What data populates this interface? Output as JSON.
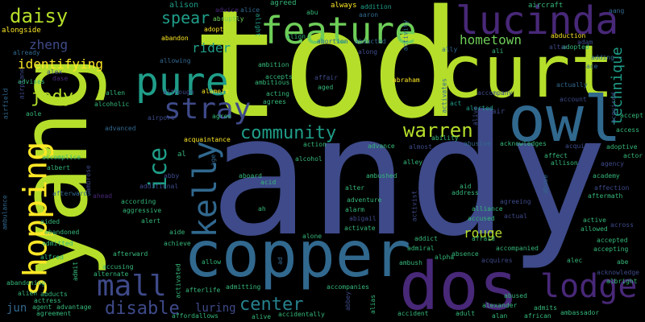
{
  "cloud": {
    "background": "#000000",
    "palette": {
      "yellowgreen": "#b5de2b",
      "green": "#6ece58",
      "teal": "#1f9e89",
      "blue": "#31688e",
      "indigo": "#3e4a89",
      "purple": "#482878",
      "darkpurple": "#440154",
      "cyan": "#26828e",
      "yellow": "#fde725",
      "lightgreen": "#35b779"
    },
    "words": [
      {
        "text": "andy",
        "color": "#3e4a89"
      },
      {
        "text": "tod",
        "color": "#b5de2b"
      },
      {
        "text": "yang",
        "color": "#b5de2b"
      },
      {
        "text": "curt",
        "color": "#b5de2b"
      },
      {
        "text": "owl",
        "color": "#31688e"
      },
      {
        "text": "copper",
        "color": "#31688e"
      },
      {
        "text": "dos",
        "color": "#482878"
      },
      {
        "text": "lucinda",
        "color": "#482878"
      },
      {
        "text": "feature",
        "color": "#6ece58"
      },
      {
        "text": "pure",
        "color": "#1f9e89"
      },
      {
        "text": "stray",
        "color": "#3e4a89"
      },
      {
        "text": "mall",
        "color": "#3e4a89"
      },
      {
        "text": "kelly",
        "color": "#31688e"
      },
      {
        "text": "lodge",
        "color": "#482878"
      },
      {
        "text": "shopping",
        "color": "#fde725"
      },
      {
        "text": "community",
        "color": "#1f9e89"
      },
      {
        "text": "warren",
        "color": "#b5de2b"
      },
      {
        "text": "daisy",
        "color": "#b5de2b"
      },
      {
        "text": "ice",
        "color": "#1f9e89"
      },
      {
        "text": "disable",
        "color": "#3e4a89"
      },
      {
        "text": "center",
        "color": "#26828e"
      },
      {
        "text": "technique",
        "color": "#1f9e89"
      },
      {
        "text": "hometown",
        "color": "#6ece58"
      },
      {
        "text": "spear",
        "color": "#1f9e89"
      },
      {
        "text": "identifying",
        "color": "#fde725"
      },
      {
        "text": "jody",
        "color": "#b5de2b"
      },
      {
        "text": "zheng",
        "color": "#3e4a89"
      },
      {
        "text": "rider",
        "color": "#1f9e89"
      },
      {
        "text": "luring",
        "color": "#3e4a89"
      },
      {
        "text": "rouge",
        "color": "#b5de2b"
      },
      {
        "text": "jun",
        "color": "#31688e"
      },
      {
        "text": "alison",
        "color": "#1f9e89"
      },
      {
        "text": "advice",
        "color": "#482878"
      },
      {
        "text": "alice",
        "color": "#31688e"
      },
      {
        "text": "agreed",
        "color": "#35b779"
      },
      {
        "text": "abu",
        "color": "#35b779"
      },
      {
        "text": "always",
        "color": "#fde725"
      },
      {
        "text": "addition",
        "color": "#1f9e89"
      },
      {
        "text": "aaron",
        "color": "#31688e"
      },
      {
        "text": "aircraft",
        "color": "#35b779"
      },
      {
        "text": "aang",
        "color": "#31688e"
      },
      {
        "text": "abruptly",
        "color": "#6ece58"
      },
      {
        "text": "alongside",
        "color": "#fde725"
      },
      {
        "text": "already",
        "color": "#31688e"
      },
      {
        "text": "alex",
        "color": "#3e4a89"
      },
      {
        "text": "dase",
        "color": "#482878"
      },
      {
        "text": "advises",
        "color": "#35b779"
      },
      {
        "text": "airplane",
        "color": "#3e4a89"
      },
      {
        "text": "airfield",
        "color": "#31688e"
      },
      {
        "text": "aole",
        "color": "#35b779"
      },
      {
        "text": "abandon",
        "color": "#fde725"
      },
      {
        "text": "adopt",
        "color": "#fde725"
      },
      {
        "text": "alight",
        "color": "#1f9e89"
      },
      {
        "text": "align",
        "color": "#35b779"
      },
      {
        "text": "abortion",
        "color": "#31688e"
      },
      {
        "text": "abducted",
        "color": "#31688e"
      },
      {
        "text": "ally",
        "color": "#31688e"
      },
      {
        "text": "ali",
        "color": "#35b779"
      },
      {
        "text": "abduction",
        "color": "#fde725"
      },
      {
        "text": "adopted",
        "color": "#35b779"
      },
      {
        "text": "altar",
        "color": "#3e4a89"
      },
      {
        "text": "adding",
        "color": "#31688e"
      },
      {
        "text": "ace",
        "color": "#31688e"
      },
      {
        "text": "adam",
        "color": "#3e4a89"
      },
      {
        "text": "allowing",
        "color": "#31688e"
      },
      {
        "text": "ambition",
        "color": "#35b779"
      },
      {
        "text": "along",
        "color": "#3e4a89"
      },
      {
        "text": "activity",
        "color": "#31688e"
      },
      {
        "text": "affair",
        "color": "#3e4a89"
      },
      {
        "text": "abraham",
        "color": "#fde725"
      },
      {
        "text": "accepts",
        "color": "#35b779"
      },
      {
        "text": "ambitious",
        "color": "#35b779"
      },
      {
        "text": "aged",
        "color": "#35b779"
      },
      {
        "text": "alamein",
        "color": "#fde725"
      },
      {
        "text": "acting",
        "color": "#35b779"
      },
      {
        "text": "although",
        "color": "#3e4a89"
      },
      {
        "text": "allen",
        "color": "#35b779"
      },
      {
        "text": "alcoholic",
        "color": "#35b779"
      },
      {
        "text": "agrees",
        "color": "#35b779"
      },
      {
        "text": "airport",
        "color": "#3e4a89"
      },
      {
        "text": "agree",
        "color": "#35b779"
      },
      {
        "text": "alerted",
        "color": "#1f9e89"
      },
      {
        "text": "activates",
        "color": "#31688e"
      },
      {
        "text": "accompany",
        "color": "#3e4a89"
      },
      {
        "text": "act",
        "color": "#1f9e89"
      },
      {
        "text": "alive",
        "color": "#3e4a89"
      },
      {
        "text": "air",
        "color": "#3e4a89"
      },
      {
        "text": "actually",
        "color": "#31688e"
      },
      {
        "text": "account",
        "color": "#3e4a89"
      },
      {
        "text": "acquired",
        "color": "#3e4a89"
      },
      {
        "text": "accept",
        "color": "#35b779"
      },
      {
        "text": "acquaintance",
        "color": "#fde725"
      },
      {
        "text": "advanced",
        "color": "#31688e"
      },
      {
        "text": "accomplice",
        "color": "#35b779"
      },
      {
        "text": "action",
        "color": "#35b779"
      },
      {
        "text": "ability",
        "color": "#35b779"
      },
      {
        "text": "advance",
        "color": "#35b779"
      },
      {
        "text": "almost",
        "color": "#3e4a89"
      },
      {
        "text": "abusive",
        "color": "#31688e"
      },
      {
        "text": "acknowledges",
        "color": "#35b779"
      },
      {
        "text": "acquire",
        "color": "#3e4a89"
      },
      {
        "text": "access",
        "color": "#35b779"
      },
      {
        "text": "adoptive",
        "color": "#35b779"
      },
      {
        "text": "actor",
        "color": "#35b779"
      },
      {
        "text": "al",
        "color": "#35b779"
      },
      {
        "text": "abby",
        "color": "#3e4a89"
      },
      {
        "text": "age",
        "color": "#31688e"
      },
      {
        "text": "albert",
        "color": "#35b779"
      },
      {
        "text": "ambrose",
        "color": "#3e4a89"
      },
      {
        "text": "aboard",
        "color": "#35b779"
      },
      {
        "text": "alcohol",
        "color": "#35b779"
      },
      {
        "text": "alley",
        "color": "#35b779"
      },
      {
        "text": "affect",
        "color": "#35b779"
      },
      {
        "text": "allison",
        "color": "#35b779"
      },
      {
        "text": "agency",
        "color": "#3e4a89"
      },
      {
        "text": "academy",
        "color": "#35b779"
      },
      {
        "text": "acid",
        "color": "#35b779"
      },
      {
        "text": "ambushed",
        "color": "#35b779"
      },
      {
        "text": "additional",
        "color": "#3e4a89"
      },
      {
        "text": "affection",
        "color": "#3e4a89"
      },
      {
        "text": "aftermath",
        "color": "#35b779"
      },
      {
        "text": "afterwards",
        "color": "#31688e"
      },
      {
        "text": "ahead",
        "color": "#482878"
      },
      {
        "text": "according",
        "color": "#35b779"
      },
      {
        "text": "alter",
        "color": "#35b779"
      },
      {
        "text": "aid",
        "color": "#35b779"
      },
      {
        "text": "address",
        "color": "#35b779"
      },
      {
        "text": "abuse",
        "color": "#31688e"
      },
      {
        "text": "ambulance",
        "color": "#31688e"
      },
      {
        "text": "adventure",
        "color": "#35b779"
      },
      {
        "text": "activist",
        "color": "#3e4a89"
      },
      {
        "text": "agreeing",
        "color": "#3e4a89"
      },
      {
        "text": "across",
        "color": "#3e4a89"
      },
      {
        "text": "aggressive",
        "color": "#35b779"
      },
      {
        "text": "ah",
        "color": "#35b779"
      },
      {
        "text": "alarm",
        "color": "#35b779"
      },
      {
        "text": "alliance",
        "color": "#35b779"
      },
      {
        "text": "actual",
        "color": "#3e4a89"
      },
      {
        "text": "active",
        "color": "#35b779"
      },
      {
        "text": "aided",
        "color": "#35b779"
      },
      {
        "text": "alert",
        "color": "#35b779"
      },
      {
        "text": "abigail",
        "color": "#3e4a89"
      },
      {
        "text": "accused",
        "color": "#35b779"
      },
      {
        "text": "allowed",
        "color": "#35b779"
      },
      {
        "text": "abandoned",
        "color": "#35b779"
      },
      {
        "text": "aide",
        "color": "#35b779"
      },
      {
        "text": "activate",
        "color": "#35b779"
      },
      {
        "text": "addict",
        "color": "#35b779"
      },
      {
        "text": "afraid",
        "color": "#35b779"
      },
      {
        "text": "accepted",
        "color": "#35b779"
      },
      {
        "text": "admitted",
        "color": "#35b779"
      },
      {
        "text": "achieve",
        "color": "#35b779"
      },
      {
        "text": "alone",
        "color": "#35b779"
      },
      {
        "text": "admiral",
        "color": "#35b779"
      },
      {
        "text": "accepting",
        "color": "#35b779"
      },
      {
        "text": "alfred",
        "color": "#35b779"
      },
      {
        "text": "afterward",
        "color": "#35b779"
      },
      {
        "text": "alpha",
        "color": "#35b779"
      },
      {
        "text": "accompanied",
        "color": "#35b779"
      },
      {
        "text": "accusing",
        "color": "#35b779"
      },
      {
        "text": "ad",
        "color": "#31688e"
      },
      {
        "text": "allow",
        "color": "#35b779"
      },
      {
        "text": "absence",
        "color": "#35b779"
      },
      {
        "text": "abe",
        "color": "#35b779"
      },
      {
        "text": "admit",
        "color": "#35b779"
      },
      {
        "text": "alternate",
        "color": "#35b779"
      },
      {
        "text": "ambush",
        "color": "#35b779"
      },
      {
        "text": "alec",
        "color": "#35b779"
      },
      {
        "text": "abandoning",
        "color": "#35b779"
      },
      {
        "text": "acquires",
        "color": "#3e4a89"
      },
      {
        "text": "acknowledge",
        "color": "#3e4a89"
      },
      {
        "text": "activated",
        "color": "#35b779"
      },
      {
        "text": "alien",
        "color": "#35b779"
      },
      {
        "text": "abducts",
        "color": "#35b779"
      },
      {
        "text": "afterlife",
        "color": "#35b779"
      },
      {
        "text": "admitting",
        "color": "#35b779"
      },
      {
        "text": "accompanies",
        "color": "#35b779"
      },
      {
        "text": "abused",
        "color": "#35b779"
      },
      {
        "text": "albright",
        "color": "#35b779"
      },
      {
        "text": "actress",
        "color": "#35b779"
      },
      {
        "text": "agent",
        "color": "#35b779"
      },
      {
        "text": "advantage",
        "color": "#35b779"
      },
      {
        "text": "abbey",
        "color": "#3e4a89"
      },
      {
        "text": "alias",
        "color": "#35b779"
      },
      {
        "text": "alexander",
        "color": "#35b779"
      },
      {
        "text": "admits",
        "color": "#35b779"
      },
      {
        "text": "ambassador",
        "color": "#35b779"
      },
      {
        "text": "agreement",
        "color": "#35b779"
      },
      {
        "text": "afford",
        "color": "#35b779"
      },
      {
        "text": "allows",
        "color": "#35b779"
      },
      {
        "text": "alive",
        "color": "#35b779"
      },
      {
        "text": "accidentally",
        "color": "#35b779"
      },
      {
        "text": "accident",
        "color": "#35b779"
      },
      {
        "text": "adult",
        "color": "#35b779"
      },
      {
        "text": "alan",
        "color": "#35b779"
      },
      {
        "text": "african",
        "color": "#35b779"
      }
    ]
  }
}
